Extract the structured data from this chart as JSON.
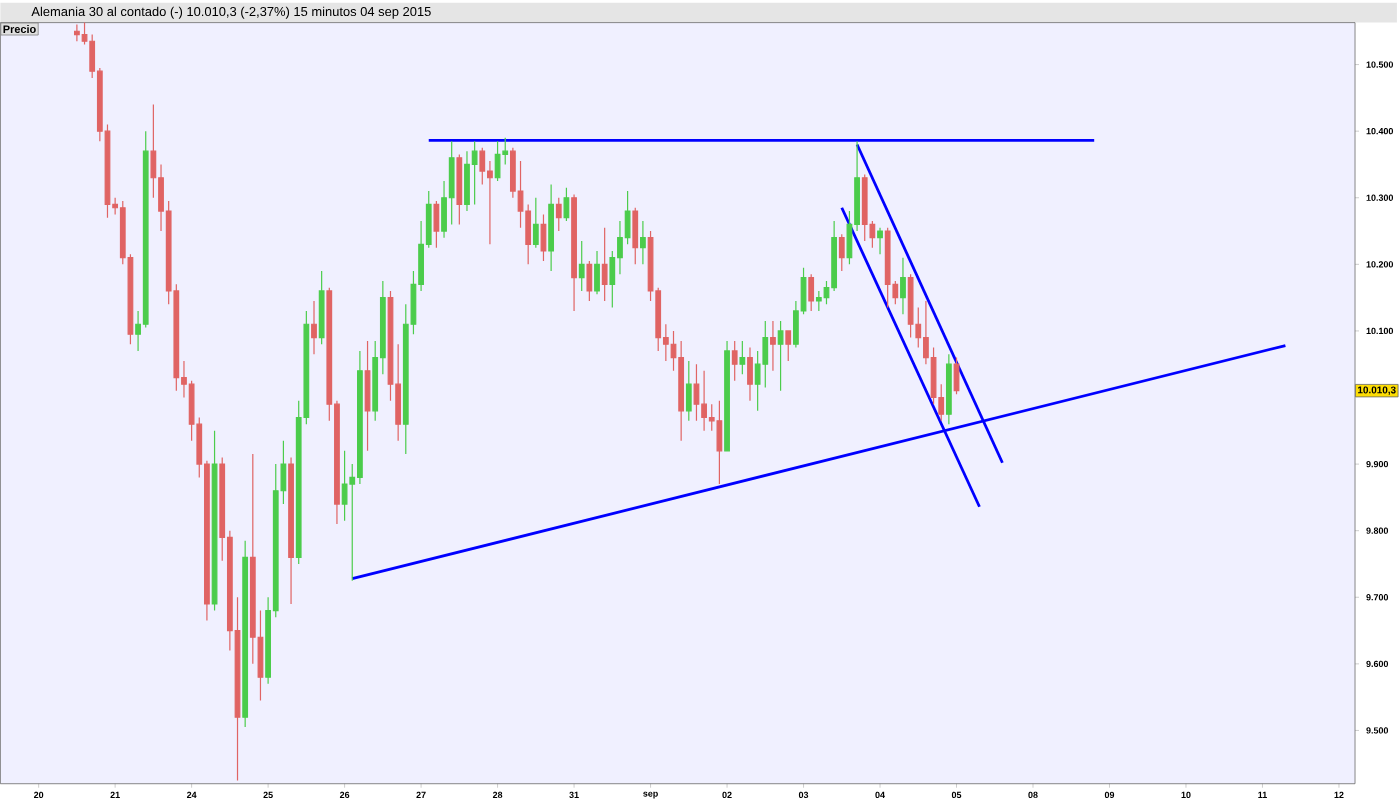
{
  "chart_data": {
    "type": "candlestick",
    "title": "Alemania 30 al contado (-)    10.010,3 (-2,37%)    15 minutos  04 sep 2015",
    "annotations": [
      "Precio",
      "10.010,3"
    ],
    "ylim": [
      9420,
      10563
    ],
    "yticks": [
      {
        "value": 9500,
        "label": "9.500"
      },
      {
        "value": 9600,
        "label": "9.600"
      },
      {
        "value": 9700,
        "label": "9.700"
      },
      {
        "value": 9800,
        "label": "9.800"
      },
      {
        "value": 9900,
        "label": "9.900"
      },
      {
        "value": 10100,
        "label": "10.100"
      },
      {
        "value": 10200,
        "label": "10.200"
      },
      {
        "value": 10300,
        "label": "10.300"
      },
      {
        "value": 10400,
        "label": "10.400"
      },
      {
        "value": 10500,
        "label": "10.500"
      }
    ],
    "categories": [
      "20",
      null,
      null,
      null,
      null,
      null,
      null,
      null,
      null,
      null,
      "21",
      null,
      null,
      null,
      null,
      null,
      null,
      null,
      null,
      null,
      "24",
      null,
      null,
      null,
      null,
      null,
      null,
      null,
      null,
      null,
      "25",
      null,
      null,
      null,
      null,
      null,
      null,
      null,
      null,
      null,
      "26",
      null,
      null,
      null,
      null,
      null,
      null,
      null,
      null,
      null,
      "27",
      null,
      null,
      null,
      null,
      null,
      null,
      null,
      null,
      null,
      "28",
      null,
      null,
      null,
      null,
      null,
      null,
      null,
      null,
      null,
      "31",
      null,
      null,
      null,
      null,
      null,
      null,
      null,
      null,
      null,
      "sep",
      null,
      null,
      null,
      null,
      null,
      null,
      null,
      null,
      null,
      "02",
      null,
      null,
      null,
      null,
      null,
      null,
      null,
      null,
      null,
      "03",
      null,
      null,
      null,
      null,
      null,
      null,
      null,
      null,
      null,
      "04",
      null,
      null,
      null,
      null,
      null,
      null,
      null,
      null,
      null,
      "05",
      null,
      null,
      null,
      null,
      null,
      null,
      null,
      null,
      null,
      "08",
      null,
      null,
      null,
      null,
      null,
      null,
      null,
      null,
      null,
      "09",
      null,
      null,
      null,
      null,
      null,
      null,
      null,
      null,
      null,
      "10",
      null,
      null,
      null,
      null,
      null,
      null,
      null,
      null,
      null,
      "11",
      null,
      null,
      null,
      null,
      null,
      null,
      null,
      null,
      null,
      "12"
    ],
    "series": [
      {
        "ohlc": [
          null,
          null,
          null,
          null,
          null,
          [
            10550,
            10560,
            10535,
            10545
          ],
          [
            10545,
            10563,
            10530,
            10535
          ],
          [
            10535,
            10545,
            10480,
            10490
          ],
          [
            10490,
            10495,
            10385,
            10400
          ],
          [
            10400,
            10410,
            10270,
            10290
          ],
          [
            10290,
            10300,
            10275,
            10285
          ],
          [
            10285,
            10295,
            10200,
            10210
          ],
          [
            10210,
            10215,
            10080,
            10095
          ],
          [
            10095,
            10130,
            10070,
            10110
          ],
          [
            10110,
            10400,
            10105,
            10370
          ],
          [
            10370,
            10440,
            10300,
            10330
          ],
          [
            10330,
            10350,
            10250,
            10280
          ],
          [
            10280,
            10295,
            10140,
            10160
          ],
          [
            10160,
            10170,
            10010,
            10030
          ],
          [
            10030,
            10055,
            10000,
            10020
          ],
          [
            10020,
            10025,
            9935,
            9960
          ],
          [
            9960,
            9970,
            9880,
            9900
          ],
          [
            9900,
            9905,
            9665,
            9690
          ],
          [
            9690,
            9950,
            9680,
            9900
          ],
          [
            9900,
            9910,
            9755,
            9790
          ],
          [
            9790,
            9800,
            9620,
            9650
          ],
          [
            9650,
            9700,
            9425,
            9520
          ],
          [
            9520,
            9785,
            9505,
            9760
          ],
          [
            9760,
            9915,
            9600,
            9640
          ],
          [
            9640,
            9680,
            9545,
            9580
          ],
          [
            9580,
            9700,
            9570,
            9680
          ],
          [
            9680,
            9900,
            9670,
            9860
          ],
          [
            9860,
            9935,
            9840,
            9900
          ],
          [
            9900,
            9910,
            9690,
            9760
          ],
          [
            9760,
            9995,
            9750,
            9970
          ],
          [
            9970,
            10130,
            9960,
            10110
          ],
          [
            10110,
            10145,
            10065,
            10090
          ],
          [
            10090,
            10190,
            10080,
            10160
          ],
          [
            10160,
            10165,
            9965,
            9990
          ],
          [
            9990,
            9995,
            9810,
            9840
          ],
          [
            9840,
            9920,
            9815,
            9870
          ],
          [
            9870,
            9900,
            9725,
            9880
          ],
          [
            9880,
            10070,
            9870,
            10040
          ],
          [
            10040,
            10085,
            9920,
            9980
          ],
          [
            9980,
            10085,
            9965,
            10060
          ],
          [
            10060,
            10175,
            10035,
            10150
          ],
          [
            10150,
            10160,
            9995,
            10020
          ],
          [
            10020,
            10080,
            9935,
            9960
          ],
          [
            9960,
            10140,
            9915,
            10110
          ],
          [
            10110,
            10190,
            10095,
            10170
          ],
          [
            10170,
            10265,
            10160,
            10230
          ],
          [
            10230,
            10310,
            10225,
            10290
          ],
          [
            10290,
            10295,
            10225,
            10250
          ],
          [
            10250,
            10325,
            10240,
            10300
          ],
          [
            10300,
            10385,
            10260,
            10360
          ],
          [
            10360,
            10365,
            10260,
            10290
          ],
          [
            10290,
            10370,
            10280,
            10350
          ],
          [
            10350,
            10385,
            10290,
            10370
          ],
          [
            10370,
            10375,
            10320,
            10340
          ],
          [
            10340,
            10355,
            10230,
            10330
          ],
          [
            10330,
            10385,
            10325,
            10365
          ],
          [
            10365,
            10390,
            10350,
            10370
          ],
          [
            10370,
            10375,
            10300,
            10310
          ],
          [
            10310,
            10355,
            10255,
            10280
          ],
          [
            10280,
            10290,
            10200,
            10230
          ],
          [
            10230,
            10300,
            10225,
            10260
          ],
          [
            10260,
            10275,
            10205,
            10220
          ],
          [
            10220,
            10320,
            10190,
            10290
          ],
          [
            10290,
            10300,
            10250,
            10270
          ],
          [
            10270,
            10315,
            10265,
            10300
          ],
          [
            10300,
            10305,
            10130,
            10180
          ],
          [
            10180,
            10235,
            10160,
            10200
          ],
          [
            10200,
            10205,
            10145,
            10160
          ],
          [
            10160,
            10220,
            10155,
            10200
          ],
          [
            10200,
            10255,
            10145,
            10170
          ],
          [
            10170,
            10220,
            10135,
            10210
          ],
          [
            10210,
            10265,
            10185,
            10240
          ],
          [
            10240,
            10310,
            10230,
            10280
          ],
          [
            10280,
            10285,
            10200,
            10225
          ],
          [
            10225,
            10265,
            10200,
            10240
          ],
          [
            10240,
            10250,
            10145,
            10160
          ],
          [
            10160,
            10165,
            10070,
            10090
          ],
          [
            10090,
            10110,
            10055,
            10080
          ],
          [
            10080,
            10100,
            10040,
            10060
          ],
          [
            10060,
            10085,
            9935,
            9980
          ],
          [
            9980,
            10055,
            9965,
            10020
          ],
          [
            10020,
            10050,
            9965,
            9990
          ],
          [
            9990,
            10040,
            9950,
            9970
          ],
          [
            9970,
            9990,
            9950,
            9965
          ],
          [
            9965,
            9995,
            9870,
            9920
          ],
          [
            9920,
            10085,
            9920,
            10070
          ],
          [
            10070,
            10085,
            10025,
            10050
          ],
          [
            10050,
            10085,
            10035,
            10060
          ],
          [
            10060,
            10075,
            9995,
            10020
          ],
          [
            10020,
            10070,
            9980,
            10050
          ],
          [
            10050,
            10115,
            10015,
            10090
          ],
          [
            10090,
            10115,
            10040,
            10080
          ],
          [
            10080,
            10115,
            10010,
            10100
          ],
          [
            10100,
            10100,
            10055,
            10080
          ],
          [
            10080,
            10145,
            10075,
            10130
          ],
          [
            10130,
            10195,
            10125,
            10180
          ],
          [
            10180,
            10185,
            10130,
            10145
          ],
          [
            10145,
            10160,
            10130,
            10150
          ],
          [
            10150,
            10175,
            10140,
            10165
          ],
          [
            10165,
            10265,
            10160,
            10240
          ],
          [
            10240,
            10245,
            10190,
            10210
          ],
          [
            10210,
            10280,
            10200,
            10260
          ],
          [
            10260,
            10385,
            10250,
            10330
          ],
          [
            10330,
            10335,
            10235,
            10260
          ],
          [
            10260,
            10265,
            10225,
            10240
          ],
          [
            10240,
            10255,
            10215,
            10250
          ],
          [
            10250,
            10255,
            10135,
            10170
          ],
          [
            10170,
            10175,
            10140,
            10150
          ],
          [
            10150,
            10210,
            10125,
            10180
          ],
          [
            10180,
            10185,
            10090,
            10110
          ],
          [
            10110,
            10135,
            10075,
            10090
          ],
          [
            10090,
            10145,
            10050,
            10060
          ],
          [
            10060,
            10075,
            9990,
            10000
          ],
          [
            10000,
            10020,
            9965,
            9975
          ],
          [
            9975,
            10065,
            9960,
            10050
          ],
          [
            10050,
            10060,
            10005,
            10010.3
          ],
          null,
          null,
          null,
          null,
          null,
          null,
          null,
          null,
          null,
          null,
          null,
          null,
          null,
          null,
          null,
          null,
          null,
          null,
          null,
          null,
          null,
          null,
          null,
          null,
          null,
          null,
          null,
          null,
          null,
          null,
          null,
          null,
          null,
          null,
          null,
          null,
          null,
          null,
          null,
          null,
          null,
          null,
          null,
          null,
          null,
          null,
          null,
          null,
          null,
          null
        ],
        "colors": [
          null,
          null,
          null,
          null,
          null,
          "#e06464",
          "#e06464",
          "#e06464",
          "#e06464",
          "#e06464",
          "#e06464",
          "#e06464",
          "#e06464",
          "#4ccc4c",
          "#4ccc4c",
          "#e06464",
          "#e06464",
          "#e06464",
          "#e06464",
          "#e06464",
          "#e06464",
          "#e06464",
          "#e06464",
          "#4ccc4c",
          "#e06464",
          "#e06464",
          "#e06464",
          "#4ccc4c",
          "#e06464",
          "#e06464",
          "#4ccc4c",
          "#4ccc4c",
          "#4ccc4c",
          "#e06464",
          "#4ccc4c",
          "#4ccc4c",
          "#e06464",
          "#4ccc4c",
          "#e06464",
          "#e06464",
          "#4ccc4c",
          "#4ccc4c",
          "#4ccc4c",
          "#e06464",
          "#4ccc4c",
          "#4ccc4c",
          "#e06464",
          "#e06464",
          "#4ccc4c",
          "#4ccc4c",
          "#4ccc4c",
          "#4ccc4c",
          "#e06464",
          "#4ccc4c",
          "#4ccc4c",
          "#e06464",
          "#4ccc4c",
          "#4ccc4c",
          "#e06464",
          "#e06464",
          "#4ccc4c",
          "#4ccc4c",
          "#e06464",
          "#e06464",
          "#e06464",
          "#4ccc4c",
          "#e06464",
          "#4ccc4c",
          "#e06464",
          "#4ccc4c",
          "#e06464",
          "#4ccc4c",
          "#e06464",
          "#4ccc4c",
          "#e06464",
          "#4ccc4c",
          "#4ccc4c",
          "#4ccc4c",
          "#e06464",
          "#4ccc4c",
          "#e06464",
          "#e06464",
          "#e06464",
          "#e06464",
          "#e06464",
          "#4ccc4c",
          "#e06464",
          "#e06464",
          "#e06464",
          "#e06464",
          "#4ccc4c",
          "#e06464",
          "#4ccc4c",
          "#e06464",
          "#4ccc4c",
          "#4ccc4c",
          "#e06464",
          "#4ccc4c",
          "#e06464",
          "#4ccc4c",
          "#4ccc4c",
          "#e06464",
          "#4ccc4c",
          "#4ccc4c",
          "#4ccc4c",
          "#e06464",
          "#4ccc4c",
          "#4ccc4c",
          "#e06464",
          "#e06464",
          "#4ccc4c",
          "#e06464",
          "#e06464",
          "#4ccc4c",
          "#e06464",
          "#e06464",
          "#e06464",
          "#e06464",
          "#e06464",
          "#4ccc4c",
          "#e06464",
          null,
          null,
          null,
          null,
          null,
          null,
          null,
          null,
          null,
          null,
          null,
          null,
          null,
          null,
          null,
          null,
          null,
          null,
          null,
          null,
          null,
          null,
          null,
          null,
          null,
          null,
          null,
          null,
          null,
          null,
          null,
          null,
          null,
          null,
          null,
          null,
          null,
          null,
          null,
          null,
          null,
          null,
          null,
          null,
          null,
          null,
          null,
          null,
          null,
          null
        ]
      },
      {
        "type": "line",
        "color": "#0000ff",
        "values": [
          null,
          null,
          null,
          null,
          null,
          null,
          null,
          null,
          null,
          null,
          null,
          null,
          null,
          null,
          null,
          null,
          null,
          null,
          null,
          null,
          null,
          null,
          null,
          null,
          null,
          null,
          null,
          null,
          null,
          null,
          null,
          null,
          null,
          null,
          null,
          null,
          null,
          null,
          null,
          null,
          null,
          null,
          null,
          null,
          null,
          null,
          null,
          null,
          null,
          null,
          null,
          10386,
          null,
          null,
          null,
          null,
          null,
          null,
          null,
          null,
          null,
          null,
          null,
          null,
          null,
          null,
          null,
          null,
          null,
          null,
          null,
          null,
          null,
          null,
          null,
          null,
          null,
          null,
          null,
          null,
          null,
          null,
          null,
          null,
          null,
          null,
          null,
          null,
          null,
          null,
          null,
          null,
          null,
          null,
          null,
          null,
          null,
          null,
          null,
          null,
          null,
          null,
          null,
          null,
          null,
          null,
          null,
          null,
          null,
          null,
          null,
          null,
          null,
          null,
          null,
          null,
          null,
          null,
          null,
          null,
          null,
          null,
          null,
          null,
          null,
          null,
          null,
          null,
          null,
          null,
          null,
          null,
          null,
          null,
          null,
          null,
          null,
          null,
          10386,
          null,
          null,
          null,
          null,
          null,
          null,
          null,
          null,
          null,
          null,
          null,
          null,
          null,
          null,
          null,
          null,
          null,
          null,
          null,
          null,
          null,
          null,
          null,
          null,
          null,
          null,
          null,
          null,
          null,
          null,
          null,
          null
        ]
      },
      {
        "type": "line",
        "color": "#0000ff",
        "values": [
          null,
          null,
          null,
          null,
          null,
          null,
          null,
          null,
          null,
          null,
          null,
          null,
          null,
          null,
          null,
          null,
          null,
          null,
          null,
          null,
          null,
          null,
          null,
          null,
          null,
          null,
          null,
          null,
          null,
          null,
          null,
          null,
          null,
          null,
          null,
          null,
          null,
          null,
          null,
          null,
          null,
          9728,
          null,
          null,
          null,
          null,
          null,
          null,
          null,
          null,
          null,
          null,
          null,
          null,
          null,
          null,
          null,
          null,
          null,
          null,
          null,
          null,
          null,
          null,
          null,
          null,
          null,
          null,
          null,
          null,
          null,
          null,
          null,
          null,
          null,
          null,
          null,
          null,
          null,
          null,
          null,
          null,
          null,
          null,
          null,
          null,
          null,
          null,
          null,
          null,
          null,
          null,
          null,
          null,
          null,
          null,
          null,
          null,
          null,
          null,
          null,
          null,
          null,
          null,
          null,
          null,
          null,
          null,
          null,
          null,
          null,
          null,
          null,
          null,
          null,
          null,
          null,
          null,
          null,
          null,
          null,
          null,
          null,
          null,
          null,
          null,
          null,
          null,
          null,
          null,
          null,
          null,
          null,
          null,
          null,
          null,
          null,
          null,
          null,
          null,
          null,
          null,
          null,
          null,
          null,
          null,
          null,
          null,
          null,
          null,
          null,
          null,
          null,
          null,
          null,
          null,
          null,
          null,
          null,
          null,
          null,
          null,
          null,
          10078,
          null,
          null,
          null,
          null,
          null,
          null,
          null
        ]
      },
      {
        "type": "line",
        "color": "#0000ff",
        "values": [
          null,
          null,
          null,
          null,
          null,
          null,
          null,
          null,
          null,
          null,
          null,
          null,
          null,
          null,
          null,
          null,
          null,
          null,
          null,
          null,
          null,
          null,
          null,
          null,
          null,
          null,
          null,
          null,
          null,
          null,
          null,
          null,
          null,
          null,
          null,
          null,
          null,
          null,
          null,
          null,
          null,
          null,
          null,
          null,
          null,
          null,
          null,
          null,
          null,
          null,
          null,
          null,
          null,
          null,
          null,
          null,
          null,
          null,
          null,
          null,
          null,
          null,
          null,
          null,
          null,
          null,
          null,
          null,
          null,
          null,
          null,
          null,
          null,
          null,
          null,
          null,
          null,
          null,
          null,
          null,
          null,
          null,
          null,
          null,
          null,
          null,
          null,
          null,
          null,
          null,
          null,
          null,
          null,
          null,
          null,
          null,
          null,
          null,
          null,
          null,
          null,
          null,
          null,
          null,
          null,
          null,
          null,
          10380,
          null,
          null,
          null,
          null,
          null,
          null,
          null,
          null,
          null,
          null,
          null,
          null,
          null,
          null,
          null,
          null,
          null,
          null,
          9902,
          null,
          null,
          null,
          null,
          null,
          null,
          null,
          null,
          null,
          null,
          null,
          null,
          null,
          null,
          null,
          null,
          null,
          null,
          null,
          null,
          null,
          null,
          null,
          null,
          null,
          null,
          null,
          null,
          null,
          null,
          null,
          null,
          null,
          null,
          null,
          null,
          null,
          null,
          null,
          null,
          null,
          null,
          null,
          null
        ]
      },
      {
        "type": "line",
        "color": "#0000ff",
        "values": [
          null,
          null,
          null,
          null,
          null,
          null,
          null,
          null,
          null,
          null,
          null,
          null,
          null,
          null,
          null,
          null,
          null,
          null,
          null,
          null,
          null,
          null,
          null,
          null,
          null,
          null,
          null,
          null,
          null,
          null,
          null,
          null,
          null,
          null,
          null,
          null,
          null,
          null,
          null,
          null,
          null,
          null,
          null,
          null,
          null,
          null,
          null,
          null,
          null,
          null,
          null,
          null,
          null,
          null,
          null,
          null,
          null,
          null,
          null,
          null,
          null,
          null,
          null,
          null,
          null,
          null,
          null,
          null,
          null,
          null,
          null,
          null,
          null,
          null,
          null,
          null,
          null,
          null,
          null,
          null,
          null,
          null,
          null,
          null,
          null,
          null,
          null,
          null,
          null,
          null,
          null,
          null,
          null,
          null,
          null,
          null,
          null,
          null,
          null,
          null,
          null,
          null,
          null,
          null,
          null,
          10285,
          null,
          null,
          null,
          null,
          null,
          null,
          null,
          null,
          null,
          null,
          null,
          null,
          null,
          null,
          null,
          null,
          null,
          9836,
          null,
          null,
          null,
          null,
          null,
          null,
          null,
          null,
          null,
          null,
          null,
          null,
          null,
          null,
          null,
          null,
          null,
          null,
          null,
          null,
          null,
          null,
          null,
          null,
          null,
          null,
          null,
          null,
          null,
          null,
          null,
          null,
          null,
          null,
          null,
          null,
          null,
          null,
          null,
          null,
          null,
          null,
          null,
          null,
          null,
          null,
          null
        ]
      }
    ],
    "grid": false
  }
}
